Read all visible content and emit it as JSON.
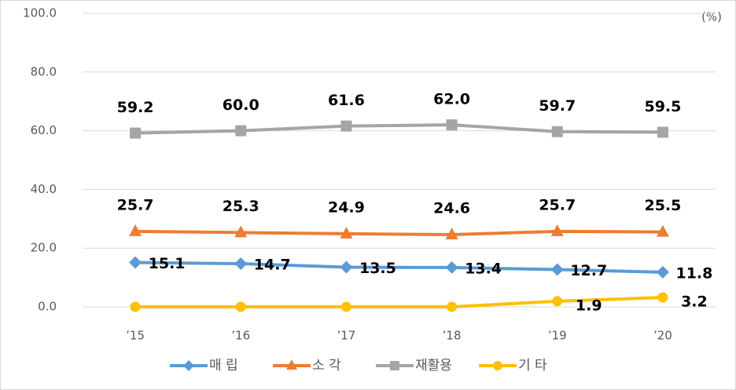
{
  "chart_data": {
    "type": "line",
    "unit_label": "(%)",
    "categories": [
      "’15",
      "’16",
      "’17",
      "’18",
      "’19",
      "’20"
    ],
    "ylim": [
      0,
      100
    ],
    "yticks": [
      {
        "value": 0,
        "label": "0.0"
      },
      {
        "value": 20,
        "label": "20.0"
      },
      {
        "value": 40,
        "label": "40.0"
      },
      {
        "value": 60,
        "label": "60.0"
      },
      {
        "value": 80,
        "label": "80.0"
      },
      {
        "value": 100,
        "label": "100.0"
      }
    ],
    "grid": true,
    "legend": "bottom",
    "series": [
      {
        "name": "매 립",
        "color": "#5b9bd5",
        "marker": "diamond",
        "values": [
          15.1,
          14.7,
          13.5,
          13.4,
          12.7,
          11.8
        ],
        "value_labels": [
          "15.1",
          "14.7",
          "13.5",
          "13.4",
          "12.7",
          "11.8"
        ]
      },
      {
        "name": "소 각",
        "color": "#ed7d31",
        "marker": "triangle",
        "values": [
          25.7,
          25.3,
          24.9,
          24.6,
          25.7,
          25.5
        ],
        "value_labels": [
          "25.7",
          "25.3",
          "24.9",
          "24.6",
          "25.7",
          "25.5"
        ]
      },
      {
        "name": "재활용",
        "color": "#a5a5a5",
        "marker": "square",
        "values": [
          59.2,
          60.0,
          61.6,
          62.0,
          59.7,
          59.5
        ],
        "value_labels": [
          "59.2",
          "60.0",
          "61.6",
          "62.0",
          "59.7",
          "59.5"
        ]
      },
      {
        "name": "기 타",
        "color": "#ffc000",
        "marker": "circle",
        "values": [
          0,
          0,
          0,
          0,
          1.9,
          3.2
        ],
        "value_labels": [
          null,
          null,
          null,
          null,
          "1.9",
          "3.2"
        ]
      }
    ]
  }
}
